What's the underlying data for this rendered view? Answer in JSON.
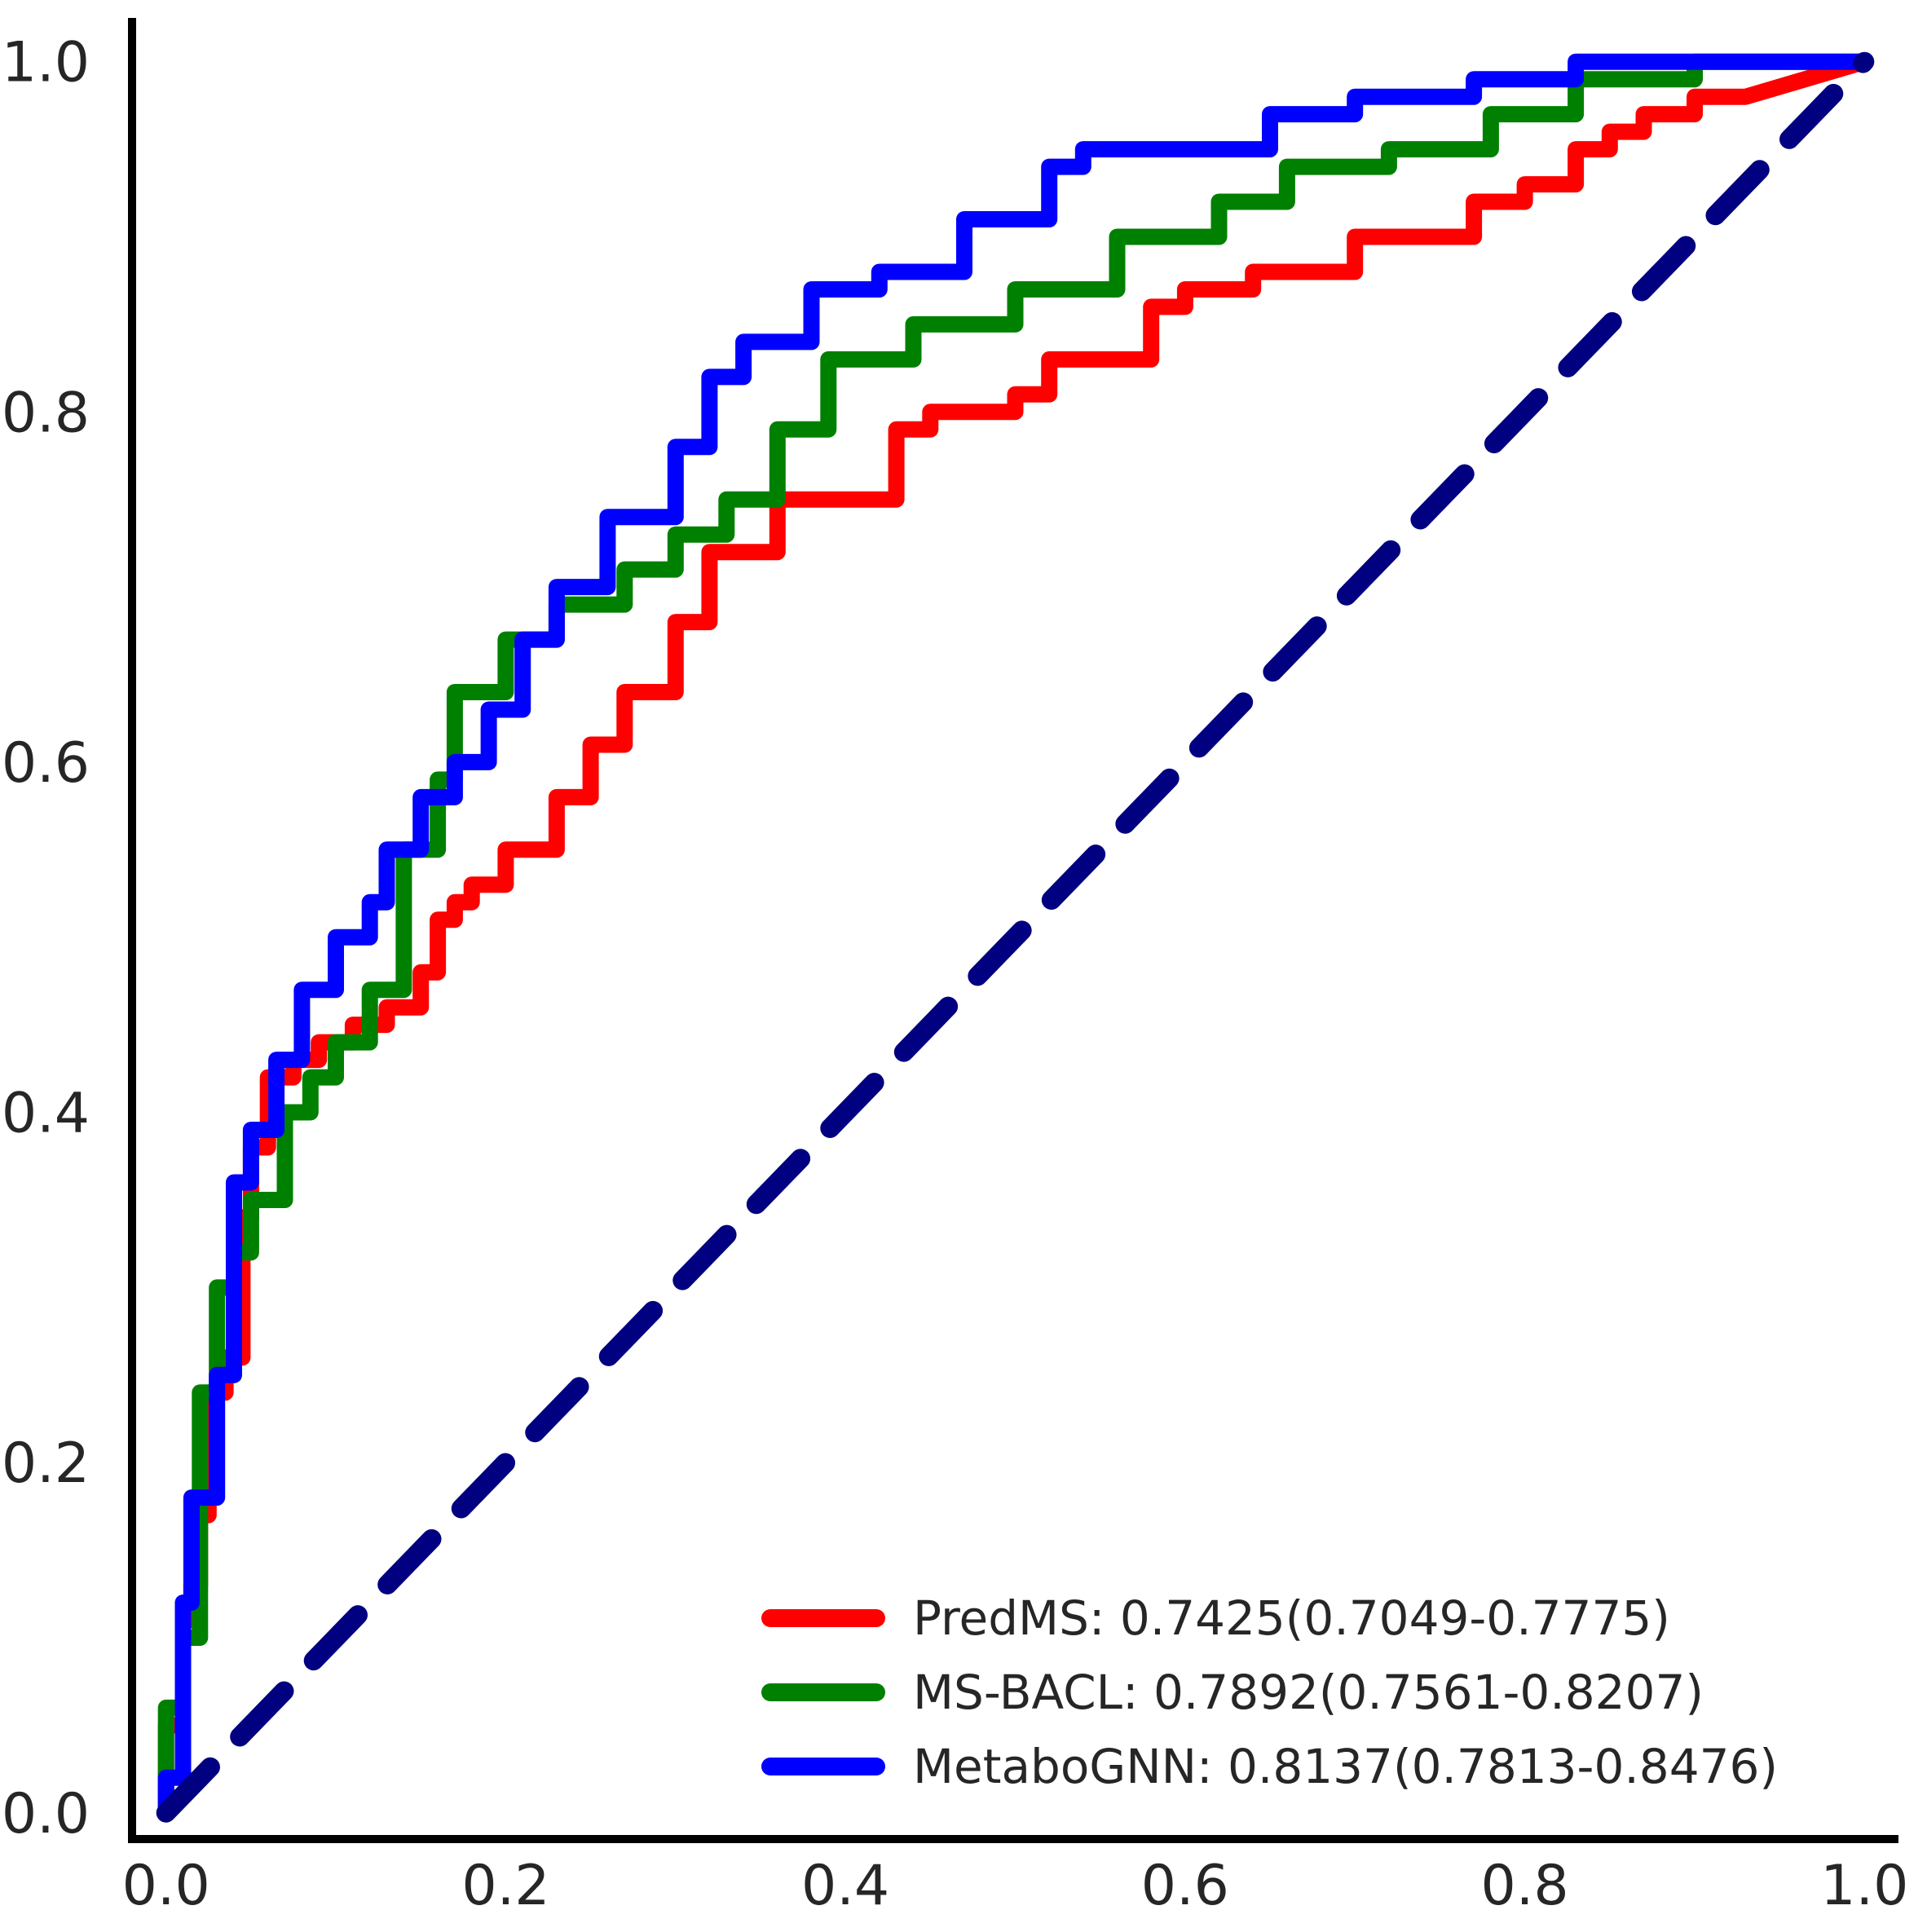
{
  "chart_data": {
    "type": "line",
    "title": "",
    "xlabel": "",
    "ylabel": "",
    "xlim": [
      -0.02,
      1.02
    ],
    "ylim": [
      -0.015,
      1.025
    ],
    "grid": false,
    "legend_position": "bottom-right",
    "x_ticks": [
      {
        "value": 0.0,
        "label": "0.0"
      },
      {
        "value": 0.2,
        "label": "0.2"
      },
      {
        "value": 0.4,
        "label": "0.4"
      },
      {
        "value": 0.6,
        "label": "0.6"
      },
      {
        "value": 0.8,
        "label": "0.8"
      },
      {
        "value": 1.0,
        "label": "1.0"
      }
    ],
    "y_ticks": [
      {
        "value": 0.0,
        "label": "0.0"
      },
      {
        "value": 0.2,
        "label": "0.2"
      },
      {
        "value": 0.4,
        "label": "0.4"
      },
      {
        "value": 0.6,
        "label": "0.6"
      },
      {
        "value": 0.8,
        "label": "0.8"
      },
      {
        "value": 1.0,
        "label": "1.0"
      }
    ],
    "series": [
      {
        "name": "PredMS: 0.7425(0.7049-0.7775)",
        "color": "#ff0000",
        "x": [
          0.0,
          0.0,
          0.01,
          0.01,
          0.015,
          0.015,
          0.02,
          0.02,
          0.025,
          0.025,
          0.035,
          0.035,
          0.045,
          0.045,
          0.05,
          0.05,
          0.06,
          0.06,
          0.075,
          0.075,
          0.09,
          0.09,
          0.11,
          0.11,
          0.13,
          0.13,
          0.15,
          0.15,
          0.16,
          0.16,
          0.17,
          0.17,
          0.18,
          0.18,
          0.2,
          0.2,
          0.23,
          0.23,
          0.25,
          0.25,
          0.27,
          0.27,
          0.3,
          0.3,
          0.32,
          0.32,
          0.36,
          0.36,
          0.43,
          0.43,
          0.45,
          0.45,
          0.5,
          0.5,
          0.52,
          0.52,
          0.58,
          0.58,
          0.6,
          0.6,
          0.64,
          0.64,
          0.7,
          0.7,
          0.77,
          0.77,
          0.8,
          0.8,
          0.83,
          0.83,
          0.85,
          0.85,
          0.87,
          0.87,
          0.9,
          0.9,
          0.93,
          1.0
        ],
        "y": [
          0.0,
          0.05,
          0.05,
          0.11,
          0.11,
          0.13,
          0.13,
          0.17,
          0.17,
          0.24,
          0.24,
          0.26,
          0.26,
          0.34,
          0.34,
          0.38,
          0.38,
          0.42,
          0.42,
          0.43,
          0.43,
          0.44,
          0.44,
          0.45,
          0.45,
          0.46,
          0.46,
          0.48,
          0.48,
          0.51,
          0.51,
          0.52,
          0.52,
          0.53,
          0.53,
          0.55,
          0.55,
          0.58,
          0.58,
          0.61,
          0.61,
          0.64,
          0.64,
          0.68,
          0.68,
          0.72,
          0.72,
          0.75,
          0.75,
          0.79,
          0.79,
          0.8,
          0.8,
          0.81,
          0.81,
          0.83,
          0.83,
          0.86,
          0.86,
          0.87,
          0.87,
          0.88,
          0.88,
          0.9,
          0.9,
          0.92,
          0.92,
          0.93,
          0.93,
          0.95,
          0.95,
          0.96,
          0.96,
          0.97,
          0.97,
          0.98,
          0.98,
          1.0
        ]
      },
      {
        "name": "MS-BACL: 0.7892(0.7561-0.8207)",
        "color": "#008000",
        "x": [
          0.0,
          0.0,
          0.01,
          0.01,
          0.02,
          0.02,
          0.03,
          0.03,
          0.04,
          0.04,
          0.05,
          0.05,
          0.07,
          0.07,
          0.085,
          0.085,
          0.1,
          0.1,
          0.12,
          0.12,
          0.14,
          0.14,
          0.16,
          0.16,
          0.17,
          0.17,
          0.2,
          0.2,
          0.23,
          0.23,
          0.27,
          0.27,
          0.3,
          0.3,
          0.33,
          0.33,
          0.36,
          0.36,
          0.39,
          0.39,
          0.44,
          0.44,
          0.5,
          0.5,
          0.56,
          0.56,
          0.62,
          0.62,
          0.66,
          0.66,
          0.72,
          0.72,
          0.78,
          0.78,
          0.83,
          0.83,
          0.9,
          0.9,
          1.0
        ],
        "y": [
          0.0,
          0.06,
          0.06,
          0.1,
          0.1,
          0.24,
          0.24,
          0.3,
          0.3,
          0.32,
          0.32,
          0.35,
          0.35,
          0.4,
          0.4,
          0.42,
          0.42,
          0.44,
          0.44,
          0.47,
          0.47,
          0.55,
          0.55,
          0.59,
          0.59,
          0.64,
          0.64,
          0.67,
          0.67,
          0.69,
          0.69,
          0.71,
          0.71,
          0.73,
          0.73,
          0.75,
          0.75,
          0.79,
          0.79,
          0.83,
          0.83,
          0.85,
          0.85,
          0.87,
          0.87,
          0.9,
          0.9,
          0.92,
          0.92,
          0.94,
          0.94,
          0.95,
          0.95,
          0.97,
          0.97,
          0.99,
          0.99,
          1.0,
          1.0
        ]
      },
      {
        "name": "MetaboGNN: 0.8137(0.7813-0.8476)",
        "color": "#0000ff",
        "x": [
          0.0,
          0.0,
          0.01,
          0.01,
          0.015,
          0.015,
          0.03,
          0.03,
          0.04,
          0.04,
          0.05,
          0.05,
          0.065,
          0.065,
          0.08,
          0.08,
          0.1,
          0.1,
          0.12,
          0.12,
          0.13,
          0.13,
          0.15,
          0.15,
          0.17,
          0.17,
          0.19,
          0.19,
          0.21,
          0.21,
          0.23,
          0.23,
          0.26,
          0.26,
          0.3,
          0.3,
          0.32,
          0.32,
          0.34,
          0.34,
          0.38,
          0.38,
          0.42,
          0.42,
          0.47,
          0.47,
          0.52,
          0.52,
          0.54,
          0.54,
          0.65,
          0.65,
          0.7,
          0.7,
          0.77,
          0.77,
          0.83,
          0.83,
          0.95,
          0.95,
          1.0
        ],
        "y": [
          0.0,
          0.02,
          0.02,
          0.12,
          0.12,
          0.18,
          0.18,
          0.25,
          0.25,
          0.36,
          0.36,
          0.39,
          0.39,
          0.43,
          0.43,
          0.47,
          0.47,
          0.5,
          0.5,
          0.52,
          0.52,
          0.55,
          0.55,
          0.58,
          0.58,
          0.6,
          0.6,
          0.63,
          0.63,
          0.67,
          0.67,
          0.7,
          0.7,
          0.74,
          0.74,
          0.78,
          0.78,
          0.82,
          0.82,
          0.84,
          0.84,
          0.87,
          0.87,
          0.88,
          0.88,
          0.91,
          0.91,
          0.94,
          0.94,
          0.95,
          0.95,
          0.97,
          0.97,
          0.98,
          0.98,
          0.99,
          0.99,
          1.0,
          1.0,
          1.0,
          1.0
        ]
      }
    ],
    "reference_line": {
      "style": "dashed",
      "color": "#000080",
      "x": [
        0.0,
        1.0
      ],
      "y": [
        0.0,
        1.0
      ]
    }
  }
}
